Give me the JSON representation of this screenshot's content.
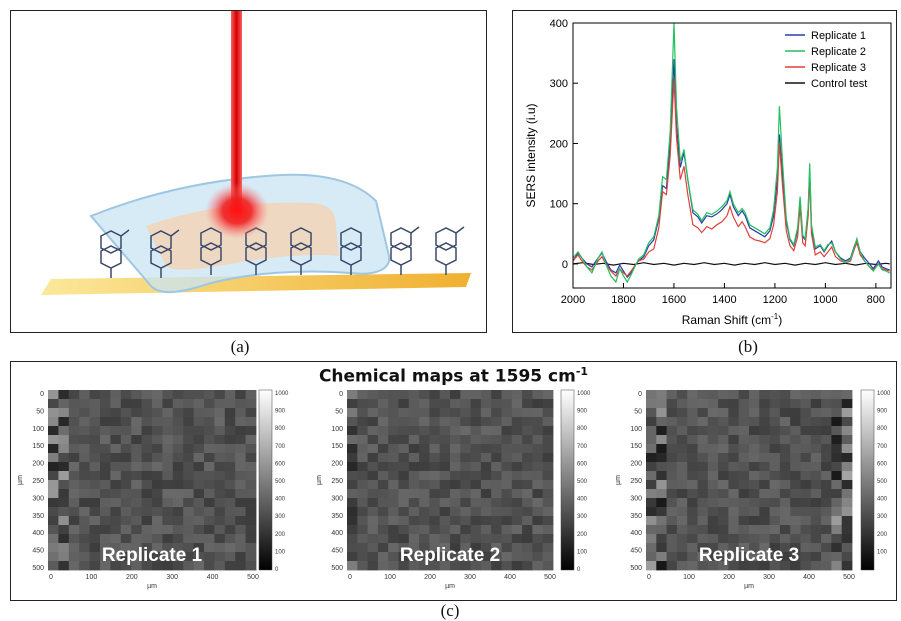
{
  "captions": {
    "a": "(a)",
    "b": "(b)",
    "c": "(c)"
  },
  "colors": {
    "replicate1": "#2a3ea8",
    "replicate2": "#22c060",
    "replicate3": "#e0403a",
    "control": "#111111",
    "laser": "#e01010",
    "substrate": "#f1c24a"
  },
  "chart_data": {
    "type": "line",
    "xlabel": "Raman Shift (cm",
    "xlabel_sup": "-1",
    "xlabel_end": ")",
    "ylabel": "SERS intensity (i.u)",
    "xlim": [
      2000,
      740
    ],
    "ylim": [
      -40,
      400
    ],
    "xticks": [
      2000,
      1800,
      1600,
      1400,
      1200,
      1000,
      800
    ],
    "yticks": [
      0,
      100,
      200,
      300,
      400
    ],
    "legend_position": "top-right",
    "series": [
      {
        "name": "Replicate 1",
        "color": "#2a3ea8",
        "points": [
          [
            2000,
            5
          ],
          [
            1980,
            18
          ],
          [
            1965,
            10
          ],
          [
            1945,
            0
          ],
          [
            1925,
            -5
          ],
          [
            1900,
            10
          ],
          [
            1885,
            18
          ],
          [
            1870,
            5
          ],
          [
            1850,
            -10
          ],
          [
            1830,
            -15
          ],
          [
            1815,
            -2
          ],
          [
            1800,
            -12
          ],
          [
            1785,
            -22
          ],
          [
            1770,
            -15
          ],
          [
            1755,
            -3
          ],
          [
            1740,
            5
          ],
          [
            1720,
            12
          ],
          [
            1700,
            30
          ],
          [
            1680,
            40
          ],
          [
            1660,
            75
          ],
          [
            1645,
            130
          ],
          [
            1630,
            125
          ],
          [
            1615,
            200
          ],
          [
            1600,
            340
          ],
          [
            1590,
            230
          ],
          [
            1575,
            160
          ],
          [
            1560,
            185
          ],
          [
            1545,
            140
          ],
          [
            1525,
            85
          ],
          [
            1505,
            78
          ],
          [
            1490,
            68
          ],
          [
            1470,
            80
          ],
          [
            1450,
            78
          ],
          [
            1430,
            83
          ],
          [
            1410,
            90
          ],
          [
            1390,
            100
          ],
          [
            1378,
            115
          ],
          [
            1365,
            95
          ],
          [
            1345,
            80
          ],
          [
            1330,
            88
          ],
          [
            1318,
            80
          ],
          [
            1300,
            60
          ],
          [
            1280,
            55
          ],
          [
            1260,
            50
          ],
          [
            1240,
            45
          ],
          [
            1220,
            55
          ],
          [
            1205,
            80
          ],
          [
            1190,
            140
          ],
          [
            1182,
            215
          ],
          [
            1170,
            150
          ],
          [
            1155,
            70
          ],
          [
            1140,
            40
          ],
          [
            1125,
            30
          ],
          [
            1110,
            55
          ],
          [
            1100,
            105
          ],
          [
            1090,
            45
          ],
          [
            1080,
            40
          ],
          [
            1068,
            90
          ],
          [
            1062,
            155
          ],
          [
            1055,
            60
          ],
          [
            1040,
            25
          ],
          [
            1020,
            30
          ],
          [
            1005,
            20
          ],
          [
            990,
            30
          ],
          [
            975,
            38
          ],
          [
            960,
            20
          ],
          [
            940,
            10
          ],
          [
            920,
            5
          ],
          [
            900,
            10
          ],
          [
            885,
            30
          ],
          [
            875,
            40
          ],
          [
            862,
            20
          ],
          [
            845,
            10
          ],
          [
            825,
            0
          ],
          [
            810,
            -8
          ],
          [
            790,
            5
          ],
          [
            775,
            -5
          ],
          [
            760,
            -8
          ],
          [
            745,
            -10
          ]
        ]
      },
      {
        "name": "Replicate 2",
        "color": "#22c060",
        "points": [
          [
            2000,
            10
          ],
          [
            1980,
            20
          ],
          [
            1965,
            10
          ],
          [
            1945,
            -5
          ],
          [
            1925,
            -15
          ],
          [
            1900,
            10
          ],
          [
            1885,
            20
          ],
          [
            1870,
            0
          ],
          [
            1850,
            -20
          ],
          [
            1830,
            -30
          ],
          [
            1815,
            -8
          ],
          [
            1800,
            -20
          ],
          [
            1785,
            -30
          ],
          [
            1770,
            -18
          ],
          [
            1755,
            -5
          ],
          [
            1740,
            8
          ],
          [
            1720,
            15
          ],
          [
            1700,
            35
          ],
          [
            1680,
            45
          ],
          [
            1660,
            80
          ],
          [
            1645,
            145
          ],
          [
            1630,
            140
          ],
          [
            1615,
            220
          ],
          [
            1600,
            400
          ],
          [
            1590,
            260
          ],
          [
            1575,
            170
          ],
          [
            1560,
            190
          ],
          [
            1545,
            140
          ],
          [
            1525,
            90
          ],
          [
            1505,
            82
          ],
          [
            1490,
            72
          ],
          [
            1470,
            85
          ],
          [
            1450,
            82
          ],
          [
            1430,
            88
          ],
          [
            1410,
            95
          ],
          [
            1390,
            105
          ],
          [
            1378,
            120
          ],
          [
            1365,
            100
          ],
          [
            1345,
            85
          ],
          [
            1330,
            92
          ],
          [
            1318,
            85
          ],
          [
            1300,
            65
          ],
          [
            1280,
            60
          ],
          [
            1260,
            55
          ],
          [
            1240,
            50
          ],
          [
            1220,
            60
          ],
          [
            1205,
            90
          ],
          [
            1190,
            160
          ],
          [
            1182,
            262
          ],
          [
            1170,
            170
          ],
          [
            1155,
            75
          ],
          [
            1140,
            42
          ],
          [
            1125,
            32
          ],
          [
            1110,
            60
          ],
          [
            1100,
            112
          ],
          [
            1090,
            48
          ],
          [
            1080,
            42
          ],
          [
            1068,
            95
          ],
          [
            1062,
            167
          ],
          [
            1055,
            65
          ],
          [
            1040,
            28
          ],
          [
            1020,
            32
          ],
          [
            1005,
            22
          ],
          [
            990,
            32
          ],
          [
            975,
            35
          ],
          [
            960,
            20
          ],
          [
            940,
            8
          ],
          [
            920,
            2
          ],
          [
            900,
            8
          ],
          [
            885,
            28
          ],
          [
            875,
            42
          ],
          [
            862,
            20
          ],
          [
            845,
            5
          ],
          [
            825,
            -5
          ],
          [
            810,
            -12
          ],
          [
            790,
            0
          ],
          [
            775,
            -10
          ],
          [
            760,
            -12
          ],
          [
            745,
            -15
          ]
        ]
      },
      {
        "name": "Replicate 3",
        "color": "#e0403a",
        "points": [
          [
            2000,
            5
          ],
          [
            1980,
            15
          ],
          [
            1965,
            5
          ],
          [
            1945,
            -5
          ],
          [
            1925,
            -10
          ],
          [
            1900,
            5
          ],
          [
            1885,
            12
          ],
          [
            1870,
            0
          ],
          [
            1850,
            -12
          ],
          [
            1830,
            -20
          ],
          [
            1815,
            -8
          ],
          [
            1800,
            -15
          ],
          [
            1785,
            -20
          ],
          [
            1770,
            -12
          ],
          [
            1755,
            -3
          ],
          [
            1740,
            5
          ],
          [
            1720,
            8
          ],
          [
            1700,
            20
          ],
          [
            1680,
            25
          ],
          [
            1660,
            60
          ],
          [
            1645,
            120
          ],
          [
            1630,
            115
          ],
          [
            1615,
            180
          ],
          [
            1600,
            308
          ],
          [
            1590,
            210
          ],
          [
            1575,
            140
          ],
          [
            1560,
            162
          ],
          [
            1545,
            115
          ],
          [
            1525,
            65
          ],
          [
            1505,
            60
          ],
          [
            1490,
            52
          ],
          [
            1470,
            62
          ],
          [
            1450,
            58
          ],
          [
            1430,
            65
          ],
          [
            1410,
            70
          ],
          [
            1390,
            80
          ],
          [
            1378,
            95
          ],
          [
            1365,
            78
          ],
          [
            1345,
            62
          ],
          [
            1330,
            70
          ],
          [
            1318,
            62
          ],
          [
            1300,
            45
          ],
          [
            1280,
            40
          ],
          [
            1260,
            38
          ],
          [
            1240,
            35
          ],
          [
            1220,
            42
          ],
          [
            1205,
            65
          ],
          [
            1190,
            120
          ],
          [
            1182,
            202
          ],
          [
            1170,
            130
          ],
          [
            1155,
            55
          ],
          [
            1140,
            30
          ],
          [
            1125,
            22
          ],
          [
            1110,
            45
          ],
          [
            1100,
            95
          ],
          [
            1090,
            35
          ],
          [
            1080,
            30
          ],
          [
            1068,
            80
          ],
          [
            1062,
            145
          ],
          [
            1055,
            50
          ],
          [
            1040,
            15
          ],
          [
            1020,
            20
          ],
          [
            1005,
            12
          ],
          [
            990,
            20
          ],
          [
            975,
            28
          ],
          [
            960,
            12
          ],
          [
            940,
            5
          ],
          [
            920,
            2
          ],
          [
            900,
            5
          ],
          [
            885,
            25
          ],
          [
            875,
            35
          ],
          [
            862,
            15
          ],
          [
            845,
            5
          ],
          [
            825,
            -5
          ],
          [
            810,
            -10
          ],
          [
            790,
            0
          ],
          [
            775,
            -8
          ],
          [
            760,
            -10
          ],
          [
            745,
            -12
          ]
        ]
      },
      {
        "name": "Control test",
        "color": "#111111",
        "points": [
          [
            2000,
            0
          ],
          [
            1960,
            2
          ],
          [
            1920,
            -1
          ],
          [
            1880,
            1
          ],
          [
            1840,
            -2
          ],
          [
            1800,
            1
          ],
          [
            1760,
            -1
          ],
          [
            1720,
            2
          ],
          [
            1680,
            -1
          ],
          [
            1640,
            1
          ],
          [
            1600,
            -2
          ],
          [
            1560,
            1
          ],
          [
            1520,
            -1
          ],
          [
            1480,
            2
          ],
          [
            1440,
            -1
          ],
          [
            1400,
            1
          ],
          [
            1360,
            -2
          ],
          [
            1320,
            1
          ],
          [
            1280,
            -1
          ],
          [
            1240,
            2
          ],
          [
            1200,
            -1
          ],
          [
            1160,
            1
          ],
          [
            1120,
            -2
          ],
          [
            1080,
            1
          ],
          [
            1040,
            -1
          ],
          [
            1000,
            2
          ],
          [
            960,
            -1
          ],
          [
            920,
            1
          ],
          [
            880,
            -2
          ],
          [
            840,
            1
          ],
          [
            800,
            -1
          ],
          [
            760,
            1
          ],
          [
            745,
            0
          ]
        ]
      }
    ]
  },
  "maps": {
    "title": "Chemical maps at 1595 cm",
    "title_sup": "-1",
    "ticks": [
      "0",
      "50",
      "100",
      "150",
      "200",
      "250",
      "300",
      "350",
      "400",
      "450",
      "500"
    ],
    "xticks": [
      "0",
      "100",
      "200",
      "300",
      "400",
      "500"
    ],
    "axis_label": "µm",
    "colorbar_ticks": [
      "1000",
      "900",
      "800",
      "700",
      "600",
      "500",
      "400",
      "300",
      "200",
      "100",
      "0"
    ],
    "colorbar_ticks_3": [
      "1000",
      "900",
      "800",
      "700",
      "600",
      "500",
      "400",
      "300",
      "200",
      "100"
    ],
    "items": [
      {
        "label": "Replicate 1",
        "seed": 11
      },
      {
        "label": "Replicate 2",
        "seed": 23
      },
      {
        "label": "Replicate 3",
        "seed": 37
      }
    ]
  }
}
